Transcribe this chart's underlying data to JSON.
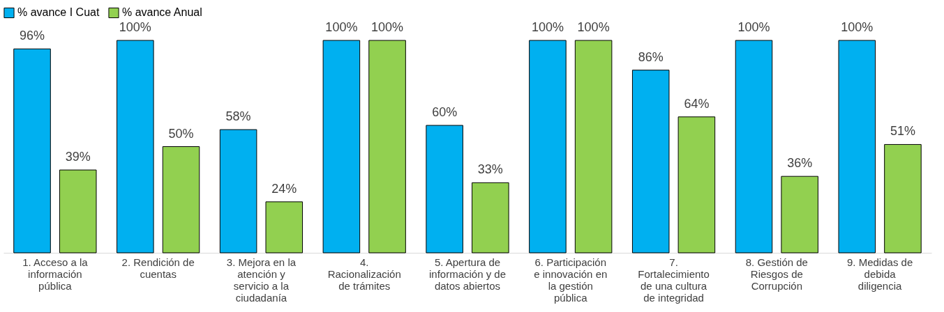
{
  "chart_data": {
    "type": "bar",
    "categories": [
      "1. Acceso a la información pública",
      "2. Rendición de cuentas",
      "3. Mejora en la atención y servicio a la ciudadanía",
      "4. Racionalización de trámites",
      "5. Apertura de información y de datos abiertos",
      "6. Participación e innovación en la gestión pública",
      "7. Fortalecimiento de una cultura de integridad",
      "8. Gestión de Riesgos de Corrupción",
      "9. Medidas de debida diligencia"
    ],
    "series": [
      {
        "name": "% avance I Cuat",
        "color": "#00b0f0",
        "values": [
          96,
          100,
          58,
          100,
          60,
          100,
          86,
          100,
          100
        ],
        "value_labels": [
          "96%",
          "100%",
          "58%",
          "100%",
          "60%",
          "100%",
          "86%",
          "100%",
          "100%"
        ]
      },
      {
        "name": "% avance Anual",
        "color": "#92d050",
        "values": [
          39,
          50,
          24,
          100,
          33,
          100,
          64,
          36,
          51
        ],
        "value_labels": [
          "39%",
          "50%",
          "24%",
          "100%",
          "33%",
          "100%",
          "64%",
          "36%",
          "51%"
        ]
      }
    ],
    "legend": "top",
    "grid": false
  }
}
